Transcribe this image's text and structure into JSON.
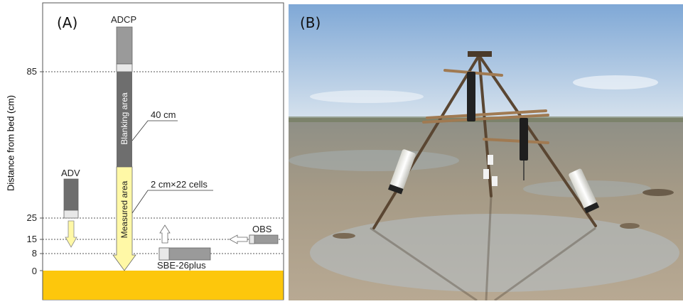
{
  "panel_a": {
    "letter": "(A)",
    "axis_label": "Distance from bed (cm)",
    "ticks": [
      "85",
      "25",
      "15",
      "8",
      "0"
    ],
    "instruments": {
      "adcp": "ADCP",
      "adv": "ADV",
      "obs": "OBS",
      "sbe": "SBE-26plus"
    },
    "areas": {
      "blanking": "Blanking area",
      "measured": "Measured area"
    },
    "annotations": {
      "blanking_size": "40 cm",
      "measured_cells": "2 cm×22 cells"
    },
    "colors": {
      "sediment": "#fdc70c",
      "arrow_fill": "#fff8a6",
      "instrument_dark": "#6e6e6e",
      "instrument_light": "#9a9a9a"
    }
  },
  "panel_b": {
    "letter": "(B)",
    "subject": "tripod with instruments on tidal flat"
  }
}
